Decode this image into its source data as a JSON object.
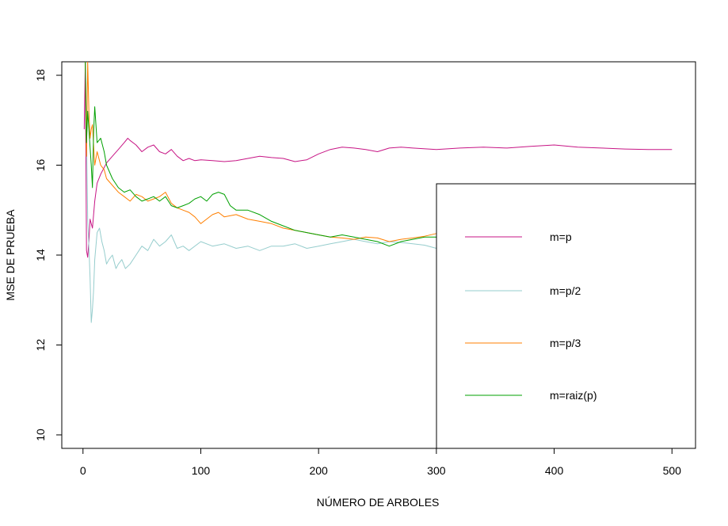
{
  "chart_data": {
    "type": "line",
    "title": "",
    "xlabel": "NÚMERO DE ARBOLES",
    "ylabel": "MSE DE PRUEBA",
    "xlim": [
      -18,
      520
    ],
    "ylim": [
      9.7,
      18.3
    ],
    "xticks": [
      0,
      100,
      200,
      300,
      400,
      500
    ],
    "yticks": [
      10,
      12,
      14,
      16,
      18
    ],
    "grid": false,
    "legend_position": "bottom-right",
    "series": [
      {
        "name": "m=p",
        "color": "#C71585",
        "x": [
          1,
          2,
          3,
          4,
          5,
          6,
          8,
          10,
          12,
          15,
          20,
          25,
          30,
          35,
          38,
          40,
          45,
          50,
          55,
          60,
          65,
          70,
          75,
          80,
          85,
          90,
          95,
          100,
          110,
          120,
          130,
          140,
          150,
          160,
          170,
          180,
          190,
          200,
          210,
          220,
          230,
          240,
          250,
          260,
          270,
          280,
          300,
          320,
          340,
          360,
          380,
          400,
          420,
          440,
          460,
          480,
          500
        ],
        "y": [
          16.8,
          18.3,
          14.1,
          13.95,
          14.3,
          14.8,
          14.6,
          15.2,
          15.6,
          15.8,
          16.05,
          16.2,
          16.35,
          16.5,
          16.6,
          16.55,
          16.45,
          16.3,
          16.4,
          16.45,
          16.3,
          16.25,
          16.35,
          16.2,
          16.1,
          16.15,
          16.1,
          16.12,
          16.1,
          16.08,
          16.1,
          16.15,
          16.2,
          16.17,
          16.15,
          16.08,
          16.12,
          16.25,
          16.35,
          16.4,
          16.38,
          16.35,
          16.3,
          16.38,
          16.4,
          16.38,
          16.35,
          16.38,
          16.4,
          16.38,
          16.42,
          16.45,
          16.4,
          16.38,
          16.36,
          16.35,
          16.35
        ]
      },
      {
        "name": "m=p/2",
        "color": "#96CDCD",
        "x": [
          2,
          3,
          4,
          5,
          6,
          7,
          8,
          9,
          10,
          12,
          14,
          16,
          18,
          20,
          22,
          25,
          28,
          30,
          33,
          36,
          40,
          45,
          50,
          55,
          60,
          65,
          70,
          75,
          80,
          85,
          90,
          100,
          110,
          120,
          130,
          140,
          150,
          160,
          170,
          180,
          190,
          200,
          210,
          220,
          230,
          240,
          250,
          260,
          270,
          280,
          290,
          300
        ],
        "y": [
          18.3,
          16.8,
          14.8,
          14.2,
          13.5,
          12.5,
          12.8,
          13.2,
          13.9,
          14.5,
          14.6,
          14.3,
          14.1,
          13.8,
          13.9,
          14.0,
          13.7,
          13.8,
          13.9,
          13.7,
          13.8,
          14.0,
          14.2,
          14.1,
          14.35,
          14.2,
          14.3,
          14.45,
          14.15,
          14.2,
          14.1,
          14.3,
          14.2,
          14.25,
          14.15,
          14.2,
          14.1,
          14.2,
          14.2,
          14.25,
          14.15,
          14.2,
          14.25,
          14.3,
          14.35,
          14.3,
          14.25,
          14.3,
          14.28,
          14.25,
          14.22,
          14.15
        ]
      },
      {
        "name": "m=p/3",
        "color": "#FF7F00",
        "x": [
          2,
          3,
          4,
          5,
          6,
          7,
          8,
          10,
          12,
          15,
          18,
          20,
          25,
          30,
          35,
          40,
          45,
          50,
          55,
          60,
          65,
          70,
          75,
          80,
          85,
          90,
          95,
          100,
          110,
          115,
          120,
          130,
          140,
          150,
          160,
          170,
          180,
          190,
          200,
          210,
          220,
          230,
          240,
          250,
          260,
          270,
          280,
          290,
          300
        ],
        "y": [
          18.3,
          16.2,
          18.3,
          17.2,
          16.6,
          16.8,
          16.9,
          16.0,
          16.3,
          16.0,
          15.9,
          15.7,
          15.55,
          15.4,
          15.3,
          15.2,
          15.35,
          15.3,
          15.2,
          15.25,
          15.3,
          15.4,
          15.15,
          15.05,
          15.0,
          14.95,
          14.85,
          14.7,
          14.9,
          14.95,
          14.85,
          14.9,
          14.8,
          14.75,
          14.7,
          14.6,
          14.55,
          14.5,
          14.45,
          14.4,
          14.38,
          14.35,
          14.4,
          14.38,
          14.3,
          14.35,
          14.38,
          14.42,
          14.48
        ]
      },
      {
        "name": "m=raiz(p)",
        "color": "#00A000",
        "x": [
          2,
          3,
          4,
          5,
          6,
          7,
          8,
          9,
          10,
          12,
          15,
          18,
          20,
          25,
          30,
          35,
          40,
          45,
          50,
          55,
          60,
          65,
          70,
          75,
          80,
          85,
          90,
          95,
          100,
          105,
          110,
          115,
          120,
          125,
          130,
          140,
          150,
          160,
          170,
          180,
          190,
          200,
          210,
          220,
          230,
          240,
          250,
          260,
          270,
          280,
          290,
          300
        ],
        "y": [
          18.3,
          16.5,
          17.2,
          16.8,
          16.4,
          16.0,
          15.5,
          16.7,
          17.3,
          16.5,
          16.6,
          16.3,
          16.0,
          15.7,
          15.5,
          15.4,
          15.45,
          15.3,
          15.2,
          15.25,
          15.3,
          15.2,
          15.3,
          15.1,
          15.05,
          15.1,
          15.15,
          15.25,
          15.3,
          15.2,
          15.35,
          15.4,
          15.35,
          15.1,
          15.0,
          15.0,
          14.9,
          14.75,
          14.65,
          14.55,
          14.5,
          14.45,
          14.4,
          14.45,
          14.4,
          14.35,
          14.3,
          14.2,
          14.3,
          14.35,
          14.4,
          14.4
        ]
      }
    ]
  }
}
